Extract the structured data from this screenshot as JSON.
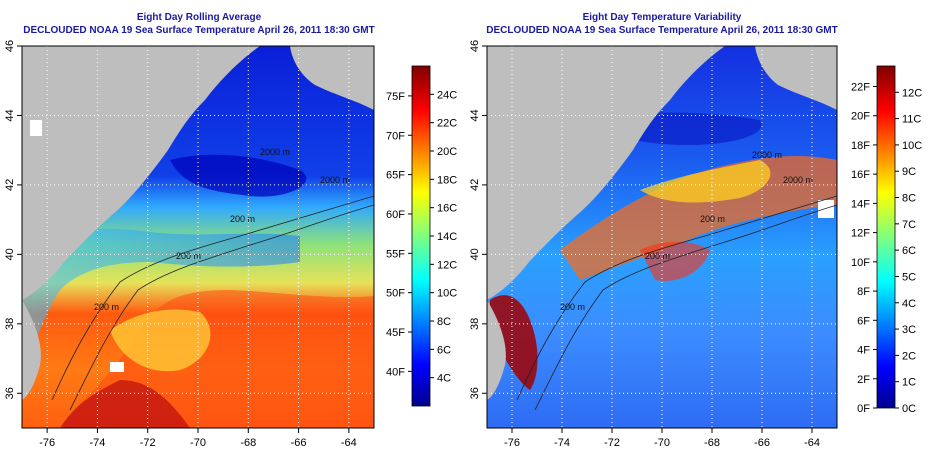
{
  "colors": {
    "title": "#1a1aa0",
    "land": "#bebebe",
    "grid": "#ffffff",
    "contour": "#222222"
  },
  "chart_data": [
    {
      "type": "heatmap",
      "title": "Eight Day Rolling Average",
      "subtitle": "DECLOUDED NOAA 19 Sea Surface Temperature April 26, 2011 18:30 GMT",
      "xlim": [
        -77,
        -63
      ],
      "ylim": [
        35,
        46
      ],
      "xticks": [
        "-76",
        "-74",
        "-72",
        "-70",
        "-68",
        "-66",
        "-64"
      ],
      "yticks": [
        "36",
        "38",
        "40",
        "42",
        "44",
        "46"
      ],
      "grid": true,
      "colorbar": {
        "range_c": [
          2,
          26
        ],
        "colormap": "jet",
        "labels_f": [
          "40F",
          "45F",
          "50F",
          "55F",
          "60F",
          "65F",
          "70F",
          "75F"
        ],
        "labels_c": [
          "4C",
          "6C",
          "8C",
          "10C",
          "12C",
          "14C",
          "16C",
          "18C",
          "20C",
          "22C",
          "24C"
        ]
      },
      "contour_labels": [
        "200 m",
        "2000 m",
        "200 m",
        "2000 m",
        "200 m"
      ]
    },
    {
      "type": "heatmap",
      "title": "Eight Day Temperature Variability",
      "subtitle": "DECLOUDED NOAA 19 Sea Surface Temperature April 26, 2011 18:30 GMT",
      "xlim": [
        -77,
        -63
      ],
      "ylim": [
        35,
        46
      ],
      "xticks": [
        "-76",
        "-74",
        "-72",
        "-70",
        "-68",
        "-66",
        "-64"
      ],
      "yticks": [
        "36",
        "38",
        "40",
        "42",
        "44",
        "46"
      ],
      "grid": true,
      "colorbar": {
        "range_c": [
          0,
          13
        ],
        "colormap": "jet",
        "labels_f": [
          "0F",
          "2F",
          "4F",
          "6F",
          "8F",
          "10F",
          "12F",
          "14F",
          "16F",
          "18F",
          "20F",
          "22F"
        ],
        "labels_c": [
          "0C",
          "1C",
          "2C",
          "3C",
          "4C",
          "5C",
          "6C",
          "7C",
          "8C",
          "9C",
          "10C",
          "11C",
          "12C"
        ]
      },
      "contour_labels": [
        "200 m",
        "2000 m",
        "200 m",
        "2000 m",
        "200 m"
      ]
    }
  ]
}
